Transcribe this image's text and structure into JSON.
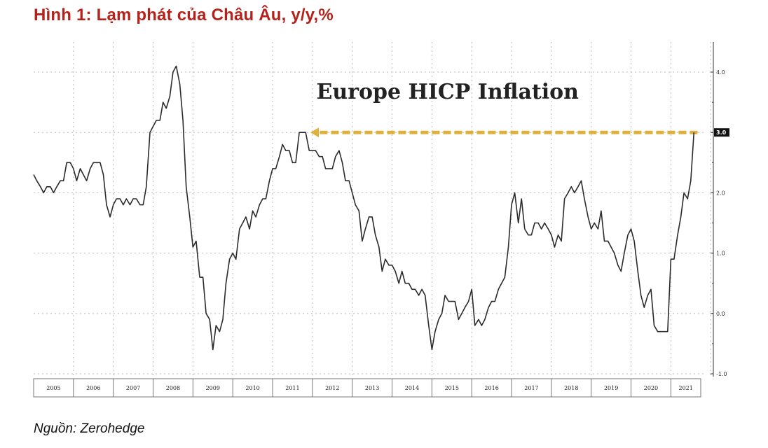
{
  "figure": {
    "title": "Hình 1: Lạm phát của Châu Âu, y/y,%",
    "source": "Nguồn: Zerohedge"
  },
  "chart_data": {
    "type": "line",
    "annotation": "Europe HICP Inflation",
    "current_value_label": "3.0",
    "ylim": [
      -1.0,
      4.0
    ],
    "y_ticks": [
      {
        "value": 4.0,
        "label": "4.0"
      },
      {
        "value": 3.0,
        "label": "3.0"
      },
      {
        "value": 2.0,
        "label": "2.0"
      },
      {
        "value": 1.0,
        "label": "1.0"
      },
      {
        "value": 0.0,
        "label": "0.0"
      },
      {
        "value": -1.0,
        "label": "-1.0"
      }
    ],
    "x_ticks": [
      "2005",
      "2006",
      "2007",
      "2008",
      "2009",
      "2010",
      "2011",
      "2012",
      "2013",
      "2014",
      "2015",
      "2016",
      "2017",
      "2018",
      "2019",
      "2020",
      "2021"
    ],
    "xlim": [
      2005.0,
      2021.75
    ],
    "grid": true,
    "reference_arrow": {
      "from": [
        2021.67,
        3.0
      ],
      "to": [
        2011.95,
        3.0
      ],
      "color": "#e0b13a"
    },
    "series": [
      {
        "color": "#2b2b2b",
        "points": [
          [
            2005.0,
            2.3
          ],
          [
            2005.08,
            2.2
          ],
          [
            2005.17,
            2.1
          ],
          [
            2005.25,
            2.0
          ],
          [
            2005.33,
            2.1
          ],
          [
            2005.42,
            2.1
          ],
          [
            2005.5,
            2.0
          ],
          [
            2005.58,
            2.1
          ],
          [
            2005.67,
            2.2
          ],
          [
            2005.75,
            2.2
          ],
          [
            2005.83,
            2.5
          ],
          [
            2005.92,
            2.5
          ],
          [
            2006.0,
            2.4
          ],
          [
            2006.08,
            2.2
          ],
          [
            2006.17,
            2.4
          ],
          [
            2006.25,
            2.3
          ],
          [
            2006.33,
            2.2
          ],
          [
            2006.42,
            2.4
          ],
          [
            2006.5,
            2.5
          ],
          [
            2006.58,
            2.5
          ],
          [
            2006.67,
            2.5
          ],
          [
            2006.75,
            2.3
          ],
          [
            2006.83,
            1.8
          ],
          [
            2006.92,
            1.6
          ],
          [
            2007.0,
            1.8
          ],
          [
            2007.08,
            1.9
          ],
          [
            2007.17,
            1.9
          ],
          [
            2007.25,
            1.8
          ],
          [
            2007.33,
            1.9
          ],
          [
            2007.42,
            1.8
          ],
          [
            2007.5,
            1.9
          ],
          [
            2007.58,
            1.9
          ],
          [
            2007.67,
            1.8
          ],
          [
            2007.75,
            1.8
          ],
          [
            2007.83,
            2.1
          ],
          [
            2007.92,
            3.0
          ],
          [
            2008.0,
            3.1
          ],
          [
            2008.08,
            3.2
          ],
          [
            2008.17,
            3.2
          ],
          [
            2008.25,
            3.5
          ],
          [
            2008.33,
            3.4
          ],
          [
            2008.42,
            3.6
          ],
          [
            2008.5,
            4.0
          ],
          [
            2008.58,
            4.1
          ],
          [
            2008.67,
            3.8
          ],
          [
            2008.75,
            3.2
          ],
          [
            2008.83,
            2.1
          ],
          [
            2008.92,
            1.6
          ],
          [
            2009.0,
            1.1
          ],
          [
            2009.08,
            1.2
          ],
          [
            2009.17,
            0.6
          ],
          [
            2009.25,
            0.6
          ],
          [
            2009.33,
            0.0
          ],
          [
            2009.42,
            -0.1
          ],
          [
            2009.5,
            -0.6
          ],
          [
            2009.58,
            -0.2
          ],
          [
            2009.67,
            -0.3
          ],
          [
            2009.75,
            -0.1
          ],
          [
            2009.83,
            0.5
          ],
          [
            2009.92,
            0.9
          ],
          [
            2010.0,
            1.0
          ],
          [
            2010.08,
            0.9
          ],
          [
            2010.17,
            1.4
          ],
          [
            2010.25,
            1.5
          ],
          [
            2010.33,
            1.6
          ],
          [
            2010.42,
            1.4
          ],
          [
            2010.5,
            1.7
          ],
          [
            2010.58,
            1.6
          ],
          [
            2010.67,
            1.8
          ],
          [
            2010.75,
            1.9
          ],
          [
            2010.83,
            1.9
          ],
          [
            2010.92,
            2.2
          ],
          [
            2011.0,
            2.4
          ],
          [
            2011.08,
            2.4
          ],
          [
            2011.17,
            2.6
          ],
          [
            2011.25,
            2.8
          ],
          [
            2011.33,
            2.7
          ],
          [
            2011.42,
            2.7
          ],
          [
            2011.5,
            2.5
          ],
          [
            2011.58,
            2.5
          ],
          [
            2011.67,
            3.0
          ],
          [
            2011.75,
            3.0
          ],
          [
            2011.83,
            3.0
          ],
          [
            2011.92,
            2.7
          ],
          [
            2012.0,
            2.7
          ],
          [
            2012.08,
            2.7
          ],
          [
            2012.17,
            2.6
          ],
          [
            2012.25,
            2.6
          ],
          [
            2012.33,
            2.4
          ],
          [
            2012.42,
            2.4
          ],
          [
            2012.5,
            2.4
          ],
          [
            2012.58,
            2.6
          ],
          [
            2012.67,
            2.7
          ],
          [
            2012.75,
            2.5
          ],
          [
            2012.83,
            2.2
          ],
          [
            2012.92,
            2.2
          ],
          [
            2013.0,
            2.0
          ],
          [
            2013.08,
            1.8
          ],
          [
            2013.17,
            1.7
          ],
          [
            2013.25,
            1.2
          ],
          [
            2013.33,
            1.4
          ],
          [
            2013.42,
            1.6
          ],
          [
            2013.5,
            1.6
          ],
          [
            2013.58,
            1.3
          ],
          [
            2013.67,
            1.1
          ],
          [
            2013.75,
            0.7
          ],
          [
            2013.83,
            0.9
          ],
          [
            2013.92,
            0.8
          ],
          [
            2014.0,
            0.8
          ],
          [
            2014.08,
            0.7
          ],
          [
            2014.17,
            0.5
          ],
          [
            2014.25,
            0.7
          ],
          [
            2014.33,
            0.5
          ],
          [
            2014.42,
            0.5
          ],
          [
            2014.5,
            0.4
          ],
          [
            2014.58,
            0.4
          ],
          [
            2014.67,
            0.3
          ],
          [
            2014.75,
            0.4
          ],
          [
            2014.83,
            0.3
          ],
          [
            2014.92,
            -0.2
          ],
          [
            2015.0,
            -0.6
          ],
          [
            2015.08,
            -0.3
          ],
          [
            2015.17,
            -0.1
          ],
          [
            2015.25,
            0.0
          ],
          [
            2015.33,
            0.3
          ],
          [
            2015.42,
            0.2
          ],
          [
            2015.5,
            0.2
          ],
          [
            2015.58,
            0.2
          ],
          [
            2015.67,
            -0.1
          ],
          [
            2015.75,
            0.0
          ],
          [
            2015.83,
            0.1
          ],
          [
            2015.92,
            0.2
          ],
          [
            2016.0,
            0.4
          ],
          [
            2016.08,
            -0.2
          ],
          [
            2016.17,
            -0.1
          ],
          [
            2016.25,
            -0.2
          ],
          [
            2016.33,
            -0.1
          ],
          [
            2016.42,
            0.1
          ],
          [
            2016.5,
            0.2
          ],
          [
            2016.58,
            0.2
          ],
          [
            2016.67,
            0.4
          ],
          [
            2016.75,
            0.5
          ],
          [
            2016.83,
            0.6
          ],
          [
            2016.92,
            1.1
          ],
          [
            2017.0,
            1.8
          ],
          [
            2017.08,
            2.0
          ],
          [
            2017.17,
            1.5
          ],
          [
            2017.25,
            1.9
          ],
          [
            2017.33,
            1.4
          ],
          [
            2017.42,
            1.3
          ],
          [
            2017.5,
            1.3
          ],
          [
            2017.58,
            1.5
          ],
          [
            2017.67,
            1.5
          ],
          [
            2017.75,
            1.4
          ],
          [
            2017.83,
            1.5
          ],
          [
            2017.92,
            1.4
          ],
          [
            2018.0,
            1.3
          ],
          [
            2018.08,
            1.1
          ],
          [
            2018.17,
            1.3
          ],
          [
            2018.25,
            1.2
          ],
          [
            2018.33,
            1.9
          ],
          [
            2018.42,
            2.0
          ],
          [
            2018.5,
            2.1
          ],
          [
            2018.58,
            2.0
          ],
          [
            2018.67,
            2.1
          ],
          [
            2018.75,
            2.2
          ],
          [
            2018.83,
            1.9
          ],
          [
            2018.92,
            1.6
          ],
          [
            2019.0,
            1.4
          ],
          [
            2019.08,
            1.5
          ],
          [
            2019.17,
            1.4
          ],
          [
            2019.25,
            1.7
          ],
          [
            2019.33,
            1.2
          ],
          [
            2019.42,
            1.2
          ],
          [
            2019.5,
            1.1
          ],
          [
            2019.58,
            1.0
          ],
          [
            2019.67,
            0.8
          ],
          [
            2019.75,
            0.7
          ],
          [
            2019.83,
            1.0
          ],
          [
            2019.92,
            1.3
          ],
          [
            2020.0,
            1.4
          ],
          [
            2020.08,
            1.2
          ],
          [
            2020.17,
            0.7
          ],
          [
            2020.25,
            0.3
          ],
          [
            2020.33,
            0.1
          ],
          [
            2020.42,
            0.3
          ],
          [
            2020.5,
            0.4
          ],
          [
            2020.58,
            -0.2
          ],
          [
            2020.67,
            -0.3
          ],
          [
            2020.75,
            -0.3
          ],
          [
            2020.83,
            -0.3
          ],
          [
            2020.92,
            -0.3
          ],
          [
            2021.0,
            0.9
          ],
          [
            2021.08,
            0.9
          ],
          [
            2021.17,
            1.3
          ],
          [
            2021.25,
            1.6
          ],
          [
            2021.33,
            2.0
          ],
          [
            2021.42,
            1.9
          ],
          [
            2021.5,
            2.2
          ],
          [
            2021.58,
            3.0
          ]
        ]
      }
    ]
  }
}
